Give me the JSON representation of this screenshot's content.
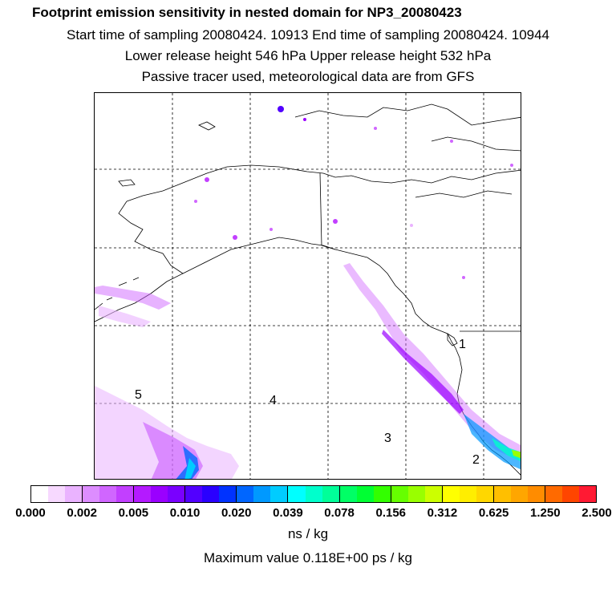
{
  "titles": {
    "line1": "Footprint emission sensitivity in nested domain for NP3_20080423",
    "line2": "Start time of sampling 20080424. 10913     End time of sampling 20080424. 10944",
    "line3": "Lower release height  546 hPa        Upper release height  532 hPa",
    "line4": "Passive tracer used, meteorological data are from GFS"
  },
  "map": {
    "day_labels": [
      "1",
      "2",
      "3",
      "4",
      "5"
    ]
  },
  "colorbar": {
    "ticks": [
      "0.000",
      "0.002",
      "0.005",
      "0.010",
      "0.020",
      "0.039",
      "0.078",
      "0.156",
      "0.312",
      "0.625",
      "1.250",
      "2.500"
    ],
    "colors": [
      "#ffffff",
      "#f7d9ff",
      "#eab3ff",
      "#dd8dff",
      "#d066ff",
      "#c23fff",
      "#b41aff",
      "#9a00ff",
      "#7a00ff",
      "#5200ff",
      "#2a00ff",
      "#0033ff",
      "#0066ff",
      "#0099ff",
      "#00ccff",
      "#00ffff",
      "#00ffcc",
      "#00ff99",
      "#00ff66",
      "#00ff33",
      "#33ff00",
      "#66ff00",
      "#99ff00",
      "#ccff00",
      "#ffff00",
      "#ffee00",
      "#ffd700",
      "#ffbf00",
      "#ffa600",
      "#ff8c00",
      "#ff6a00",
      "#ff4500",
      "#ff1a33",
      "#ff0066",
      "#ff0099",
      "#ff00cc",
      "#e600bf",
      "#cc00b3",
      "#b300a6",
      "#990099",
      "#800080",
      "#660066"
    ],
    "units": "ns / kg",
    "max_value": "Maximum value  0.118E+00 ps / kg"
  }
}
